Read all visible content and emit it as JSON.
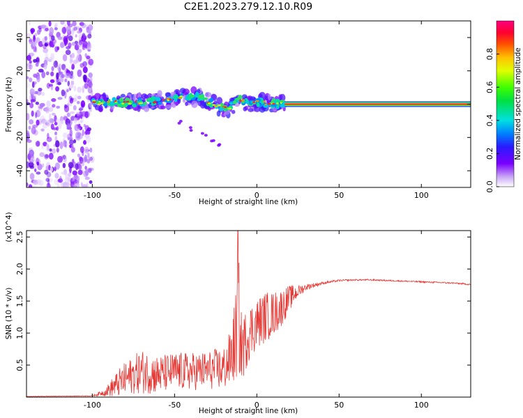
{
  "title": "C2E1.2023.279.12.10.R09",
  "chart_data": [
    {
      "type": "heatmap",
      "xlabel": "Height of straight line (km)",
      "ylabel": "Frequency (Hz)",
      "xlim": [
        -140,
        130
      ],
      "ylim": [
        -50,
        50
      ],
      "xticks": [
        -100,
        -50,
        0,
        50,
        100
      ],
      "yticks": [
        -40,
        -20,
        0,
        20,
        40
      ],
      "colorbar": {
        "label": "Normalized spectral amplitude",
        "range": [
          0,
          1
        ],
        "ticks": [
          "0.0",
          "0.2",
          "0.4",
          "0.6",
          "0.8"
        ]
      },
      "features": [
        {
          "kind": "noise-region",
          "x": [
            -140,
            -100
          ],
          "y": [
            -50,
            50
          ]
        },
        {
          "kind": "blob-band",
          "x": [
            -100,
            17
          ],
          "y_center": [
            [
              -100,
              1
            ],
            [
              -85,
              1
            ],
            [
              -75,
              1
            ],
            [
              -60,
              2
            ],
            [
              -47,
              4
            ],
            [
              -35,
              4
            ],
            [
              -30,
              2
            ],
            [
              -22,
              -2
            ],
            [
              -18,
              -3
            ],
            [
              -10,
              3
            ],
            [
              -5,
              0
            ],
            [
              0,
              1
            ],
            [
              17,
              0
            ]
          ]
        },
        {
          "kind": "arc",
          "points": [
            [
              -47,
              -11
            ],
            [
              -40,
              -15
            ],
            [
              -32,
              -18
            ],
            [
              -27,
              -22
            ],
            [
              -24,
              -24
            ]
          ]
        },
        {
          "kind": "steady-line",
          "x": [
            17,
            130
          ],
          "y": 0,
          "amplitude": 1.0
        }
      ]
    },
    {
      "type": "line",
      "xlabel": "Height of straight line (km)",
      "ylabel": "SNR (10 * v/v)",
      "ymultiplier": "(x10^4)",
      "xlim": [
        -140,
        130
      ],
      "ylim": [
        0,
        2.6
      ],
      "xticks": [
        -100,
        -50,
        0,
        50,
        100
      ],
      "yticks": [
        "0.5",
        "1.0",
        "1.5",
        "2.0",
        "2.5"
      ],
      "color": "#e53935",
      "envelope_x": [
        -140,
        -100,
        -92,
        -88,
        -82,
        -75,
        -70,
        -60,
        -50,
        -40,
        -30,
        -20,
        -16,
        -13,
        -11,
        -10,
        -8,
        -5,
        0,
        5,
        10,
        15,
        20,
        25,
        30,
        40,
        50,
        60,
        70,
        80,
        90,
        100,
        110,
        120,
        130
      ],
      "envelope_y": [
        0.01,
        0.02,
        0.08,
        0.15,
        0.25,
        0.35,
        0.4,
        0.35,
        0.4,
        0.4,
        0.42,
        0.45,
        0.6,
        0.9,
        1.3,
        0.8,
        0.8,
        1.0,
        1.15,
        1.25,
        1.3,
        1.4,
        1.55,
        1.65,
        1.72,
        1.78,
        1.82,
        1.83,
        1.83,
        1.82,
        1.81,
        1.8,
        1.79,
        1.78,
        1.76
      ],
      "envelope_spread": [
        0.003,
        0.005,
        0.06,
        0.15,
        0.25,
        0.3,
        0.35,
        0.3,
        0.3,
        0.3,
        0.3,
        0.35,
        0.45,
        0.7,
        0.9,
        0.6,
        0.5,
        0.45,
        0.4,
        0.4,
        0.35,
        0.3,
        0.2,
        0.1,
        0.05,
        0.02,
        0.015,
        0.012,
        0.012,
        0.012,
        0.012,
        0.012,
        0.012,
        0.012,
        0.012
      ],
      "peak": {
        "x": -11.5,
        "y": 2.62
      }
    }
  ]
}
